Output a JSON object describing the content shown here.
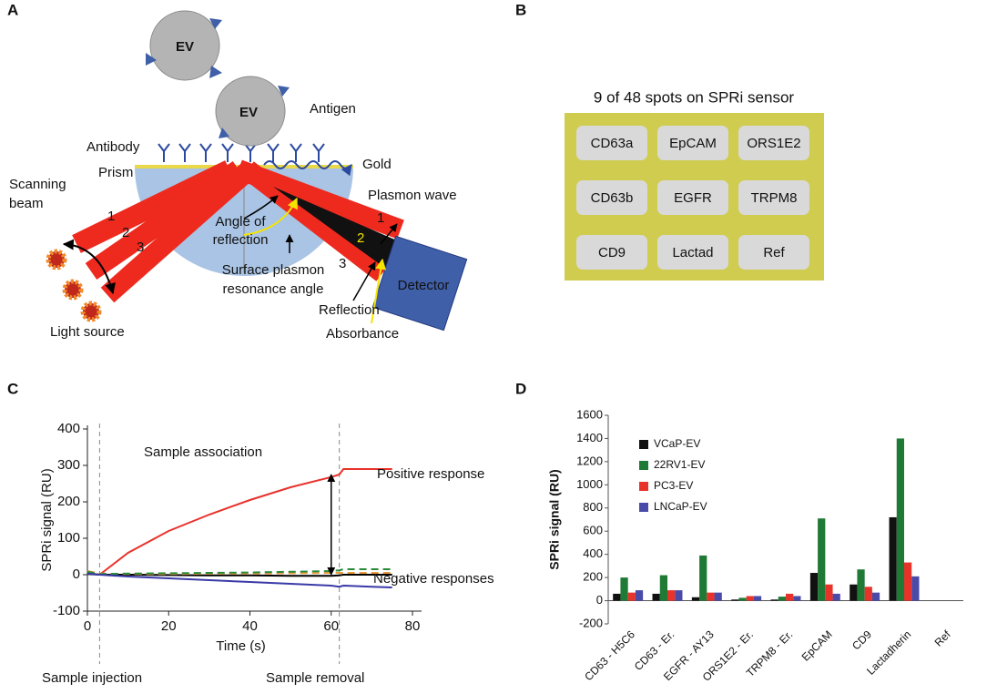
{
  "panel_labels": [
    "A",
    "B",
    "C",
    "D"
  ],
  "panel_a": {
    "ev": [
      "EV",
      "EV"
    ],
    "antigen": "Antigen",
    "antibody": "Antibody",
    "prism": "Prism",
    "gold": "Gold",
    "plasmon_wave": "Plasmon wave",
    "scanning_beam": [
      "Scanning",
      "beam"
    ],
    "light_source": "Light source",
    "angle_of_reflection": [
      "Angle of",
      "reflection"
    ],
    "spr_angle": [
      "Surface plasmon",
      "resonance angle"
    ],
    "reflection": "Reflection",
    "absorbance": "Absorbance",
    "detector": "Detector",
    "beam_numbers_left": [
      "1",
      "2",
      "3"
    ],
    "beam_numbers_right": [
      "1",
      "2",
      "3"
    ]
  },
  "panel_b": {
    "title": "9 of 48 spots on SPRi sensor",
    "spots": [
      [
        "CD63a",
        "EpCAM",
        "ORS1E2"
      ],
      [
        "CD63b",
        "EGFR",
        "TRPM8"
      ],
      [
        "CD9",
        "Lactad",
        "Ref"
      ]
    ]
  },
  "chart_data": [
    {
      "type": "line",
      "x_label": "Time (s)",
      "y_label": "SPRi signal (RU)",
      "x": [
        0,
        3,
        10,
        20,
        30,
        40,
        50,
        60,
        62,
        63,
        70,
        75
      ],
      "series": [
        {
          "color": "#e8322b",
          "dashed": false,
          "values": [
            5,
            0,
            60,
            120,
            165,
            205,
            240,
            268,
            275,
            290,
            290,
            290
          ]
        },
        {
          "color": "#000000",
          "dashed": false,
          "values": [
            2,
            0,
            0,
            -1,
            -2,
            -2,
            -3,
            -3,
            -2,
            0,
            0,
            0
          ]
        },
        {
          "color": "#e89a3c",
          "dashed": true,
          "values": [
            10,
            3,
            2,
            2,
            3,
            3,
            4,
            5,
            5,
            5,
            5,
            5
          ]
        },
        {
          "color": "#2a8a3a",
          "dashed": true,
          "values": [
            8,
            2,
            3,
            4,
            5,
            6,
            8,
            10,
            12,
            15,
            15,
            15
          ]
        },
        {
          "color": "#3a3aa8",
          "dashed": false,
          "values": [
            3,
            0,
            -5,
            -10,
            -15,
            -20,
            -25,
            -30,
            -33,
            -30,
            -33,
            -35
          ]
        }
      ],
      "xlim": [
        0,
        80
      ],
      "xticks": [
        0,
        20,
        40,
        60,
        80
      ],
      "ylim": [
        -100,
        400
      ],
      "yticks": [
        -100,
        0,
        100,
        200,
        300,
        400
      ],
      "vlines": [
        3,
        62
      ],
      "arrow": {
        "x": 60,
        "y": [
          0,
          275
        ]
      },
      "annotations": [
        "Sample association",
        "Positive response",
        "Negative responses",
        "Sample injection",
        "Sample removal"
      ]
    },
    {
      "type": "bar",
      "y_label": "SPRi signal (RU)",
      "categories": [
        "CD63 - H5C6",
        "CD63 - Er.",
        "EGFR - AY13",
        "ORS1E2 - Er.",
        "TRPM8 - Er.",
        "EpCAM",
        "CD9",
        "Lactadherin",
        "Ref"
      ],
      "series": [
        {
          "name": "VCaP-EV",
          "color": "#111111",
          "values": [
            60,
            60,
            30,
            10,
            10,
            240,
            140,
            720,
            0
          ]
        },
        {
          "name": "22RV1-EV",
          "color": "#1f7a35",
          "values": [
            200,
            220,
            390,
            25,
            35,
            710,
            270,
            1400,
            0
          ]
        },
        {
          "name": "PC3-EV",
          "color": "#e8332a",
          "values": [
            70,
            90,
            70,
            40,
            60,
            140,
            120,
            330,
            0
          ]
        },
        {
          "name": "LNCaP-EV",
          "color": "#4a4aa8",
          "values": [
            90,
            90,
            70,
            40,
            40,
            60,
            70,
            210,
            0
          ]
        }
      ],
      "ylim": [
        -200,
        1600
      ],
      "yticks": [
        -200,
        0,
        200,
        400,
        600,
        800,
        1000,
        1200,
        1400,
        1600
      ],
      "legend": "upper-left"
    }
  ]
}
